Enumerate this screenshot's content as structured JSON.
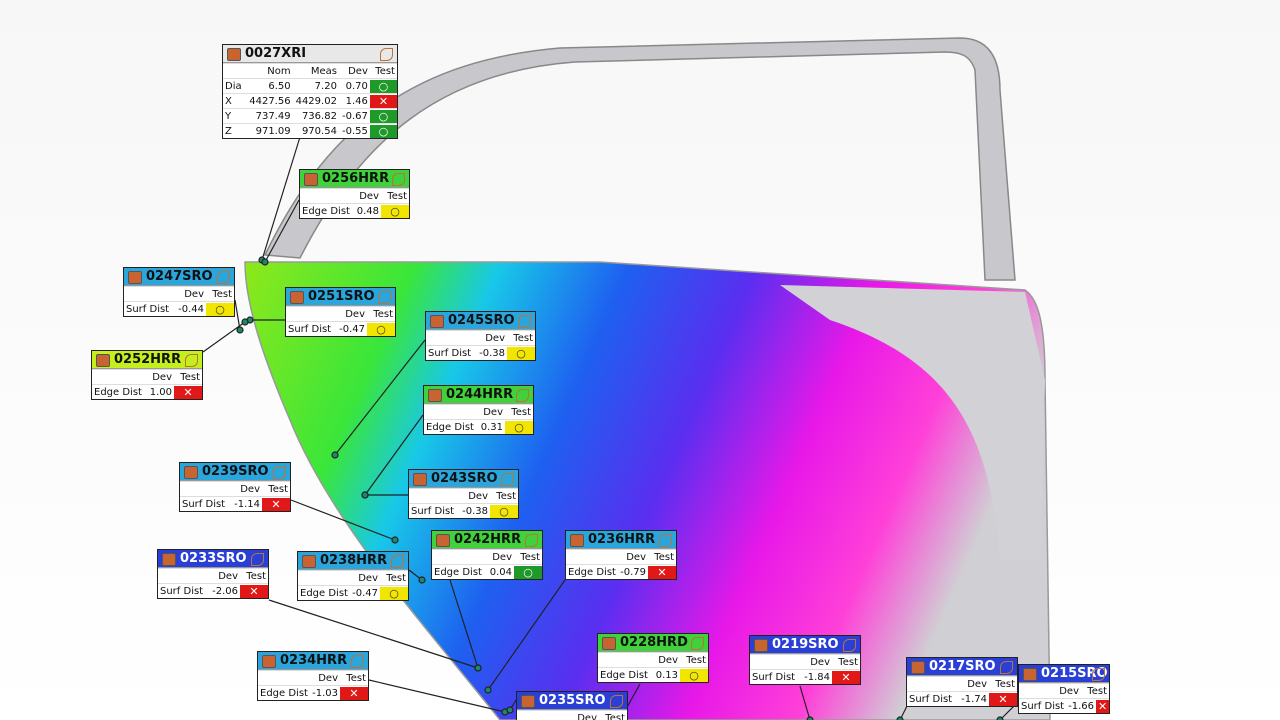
{
  "columns": [
    "Dev",
    "Test"
  ],
  "main_callout": {
    "id": "0027XRI",
    "header_color": "#e8e8e8",
    "title_color": "#111111",
    "columns": [
      "Nom",
      "Meas",
      "Dev",
      "Test"
    ],
    "rows": [
      {
        "label": "Dia",
        "nom": "6.50",
        "meas": "7.20",
        "dev": "0.70",
        "test_color": "#1f9a2a",
        "mark": "○"
      },
      {
        "label": "X",
        "nom": "4427.56",
        "meas": "4429.02",
        "dev": "1.46",
        "test_color": "#e01818",
        "mark": "✕"
      },
      {
        "label": "Y",
        "nom": "737.49",
        "meas": "736.82",
        "dev": "-0.67",
        "test_color": "#1f9a2a",
        "mark": "○"
      },
      {
        "label": "Z",
        "nom": "971.09",
        "meas": "970.54",
        "dev": "-0.55",
        "test_color": "#1f9a2a",
        "mark": "○"
      }
    ]
  },
  "callouts": [
    {
      "id": "0256HRR",
      "header_color": "#3fd23a",
      "title_color": "#111111",
      "label": "Edge Dist",
      "dev": "0.48",
      "test_color": "#f2e600",
      "mark": "○"
    },
    {
      "id": "0247SRO",
      "header_color": "#2aa6dc",
      "title_color": "#111111",
      "label": "Surf Dist",
      "dev": "-0.44",
      "test_color": "#f2e600",
      "mark": "○"
    },
    {
      "id": "0251SRO",
      "header_color": "#2aa6dc",
      "title_color": "#111111",
      "label": "Surf Dist",
      "dev": "-0.47",
      "test_color": "#f2e600",
      "mark": "○"
    },
    {
      "id": "0245SRO",
      "header_color": "#2aa6dc",
      "title_color": "#111111",
      "label": "Surf Dist",
      "dev": "-0.38",
      "test_color": "#f2e600",
      "mark": "○"
    },
    {
      "id": "0252HRR",
      "header_color": "#c4ee1e",
      "title_color": "#111111",
      "label": "Edge Dist",
      "dev": "1.00",
      "test_color": "#e01818",
      "mark": "✕"
    },
    {
      "id": "0244HRR",
      "header_color": "#3fd23a",
      "title_color": "#111111",
      "label": "Edge Dist",
      "dev": "0.31",
      "test_color": "#f2e600",
      "mark": "○"
    },
    {
      "id": "0239SRO",
      "header_color": "#2aa6dc",
      "title_color": "#111111",
      "label": "Surf Dist",
      "dev": "-1.14",
      "test_color": "#e01818",
      "mark": "✕"
    },
    {
      "id": "0243SRO",
      "header_color": "#2aa6dc",
      "title_color": "#111111",
      "label": "Surf Dist",
      "dev": "-0.38",
      "test_color": "#f2e600",
      "mark": "○"
    },
    {
      "id": "0242HRR",
      "header_color": "#3fd23a",
      "title_color": "#111111",
      "label": "Edge Dist",
      "dev": "0.04",
      "test_color": "#1f9a2a",
      "mark": "○"
    },
    {
      "id": "0236HRR",
      "header_color": "#2aa6dc",
      "title_color": "#111111",
      "label": "Edge Dist",
      "dev": "-0.79",
      "test_color": "#e01818",
      "mark": "✕"
    },
    {
      "id": "0233SRO",
      "header_color": "#2a3fd6",
      "title_color": "#ffffff",
      "label": "Surf Dist",
      "dev": "-2.06",
      "test_color": "#e01818",
      "mark": "✕"
    },
    {
      "id": "0238HRR",
      "header_color": "#2aa6dc",
      "title_color": "#111111",
      "label": "Edge Dist",
      "dev": "-0.47",
      "test_color": "#f2e600",
      "mark": "○"
    },
    {
      "id": "0234HRR",
      "header_color": "#2aa6dc",
      "title_color": "#111111",
      "label": "Edge Dist",
      "dev": "-1.03",
      "test_color": "#e01818",
      "mark": "✕"
    },
    {
      "id": "0228HRD",
      "header_color": "#3fd23a",
      "title_color": "#111111",
      "label": "Edge Dist",
      "dev": "0.13",
      "test_color": "#f2e600",
      "mark": "○"
    },
    {
      "id": "0219SRO",
      "header_color": "#2a3fd6",
      "title_color": "#ffffff",
      "label": "Surf Dist",
      "dev": "-1.84",
      "test_color": "#e01818",
      "mark": "✕"
    },
    {
      "id": "0217SRO",
      "header_color": "#2a3fd6",
      "title_color": "#ffffff",
      "label": "Surf Dist",
      "dev": "-1.74",
      "test_color": "#e01818",
      "mark": "✕"
    },
    {
      "id": "0215SRO",
      "header_color": "#2a3fd6",
      "title_color": "#ffffff",
      "label": "Surf Dist",
      "dev": "-1.66",
      "test_color": "#e01818",
      "mark": "✕"
    },
    {
      "id": "0235SRO",
      "header_color": "#2a3fd6",
      "title_color": "#ffffff"
    }
  ]
}
